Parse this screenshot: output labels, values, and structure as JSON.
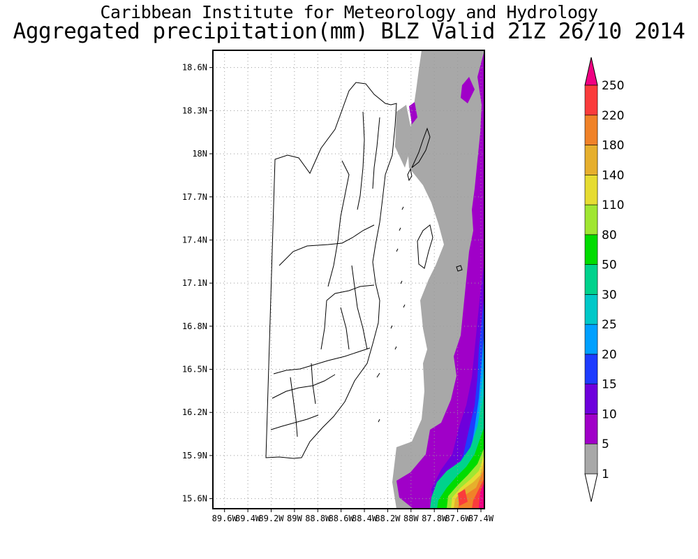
{
  "header": {
    "institute": "Caribbean Institute for Meteorology and Hydrology",
    "product": "Aggregated precipitation(mm) BLZ Valid 21Z 26/10 2014"
  },
  "map": {
    "lon_range": [
      -89.7,
      -87.37
    ],
    "lat_range": [
      15.53,
      18.72
    ],
    "lat_ticks": [
      {
        "value": 18.6,
        "label": "18.6N"
      },
      {
        "value": 18.3,
        "label": "18.3N"
      },
      {
        "value": 18.0,
        "label": "18N"
      },
      {
        "value": 17.7,
        "label": "17.7N"
      },
      {
        "value": 17.4,
        "label": "17.4N"
      },
      {
        "value": 17.1,
        "label": "17.1N"
      },
      {
        "value": 16.8,
        "label": "16.8N"
      },
      {
        "value": 16.5,
        "label": "16.5N"
      },
      {
        "value": 16.2,
        "label": "16.2N"
      },
      {
        "value": 15.9,
        "label": "15.9N"
      },
      {
        "value": 15.6,
        "label": "15.6N"
      }
    ],
    "lon_ticks": [
      {
        "value": -89.6,
        "label": "89.6W"
      },
      {
        "value": -89.4,
        "label": "89.4W"
      },
      {
        "value": -89.2,
        "label": "89.2W"
      },
      {
        "value": -89.0,
        "label": "89W"
      },
      {
        "value": -88.8,
        "label": "88.8W"
      },
      {
        "value": -88.6,
        "label": "88.6W"
      },
      {
        "value": -88.4,
        "label": "88.4W"
      },
      {
        "value": -88.2,
        "label": "88.2W"
      },
      {
        "value": -88.0,
        "label": "88W"
      },
      {
        "value": -87.8,
        "label": "87.8W"
      },
      {
        "value": -87.6,
        "label": "87.6W"
      },
      {
        "value": -87.4,
        "label": "87.4W"
      }
    ],
    "grid": true,
    "legend_position": "right"
  },
  "colorbar": {
    "levels": [
      "1",
      "5",
      "10",
      "15",
      "20",
      "25",
      "30",
      "50",
      "80",
      "110",
      "140",
      "180",
      "220",
      "250"
    ],
    "colors": [
      "#ffffff",
      "#a8a8a8",
      "#a000c8",
      "#6e00dc",
      "#1e3cff",
      "#00a0ff",
      "#00c8c8",
      "#00d28c",
      "#00dc00",
      "#a0e632",
      "#e6dc32",
      "#e6af2d",
      "#f08228",
      "#fa3c3c",
      "#f00082"
    ]
  }
}
